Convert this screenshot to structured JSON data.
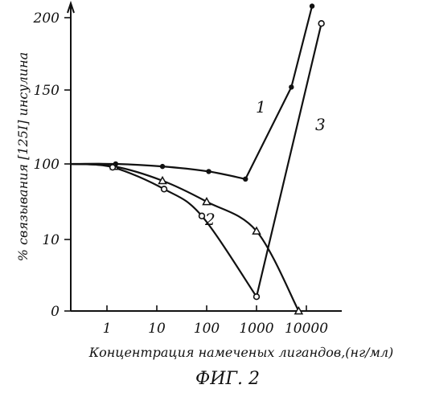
{
  "chart_data": {
    "type": "line",
    "title": "",
    "caption": "ФИГ. 2",
    "xlabel": "Концентрация намеченых лигандов,(нг/мл)",
    "ylabel": "% связывания [125I] инсулина",
    "x_scale": "log",
    "x_ticks": [
      "1",
      "10",
      "100",
      "1000",
      "10000"
    ],
    "y_ticks": [
      "0",
      "10",
      "100",
      "150",
      "200"
    ],
    "grid": false,
    "series": [
      {
        "name": "1",
        "marker": "filled-circle",
        "points": [
          {
            "x": 1.5,
            "y": 100
          },
          {
            "x": 13,
            "y": 97
          },
          {
            "x": 110,
            "y": 91
          },
          {
            "x": 600,
            "y": 82
          },
          {
            "x": 5000,
            "y": 152
          },
          {
            "x": 13000,
            "y": 208
          }
        ]
      },
      {
        "name": "2",
        "marker": "triangle",
        "points": [
          {
            "x": 1.4,
            "y": 97
          },
          {
            "x": 13,
            "y": 80
          },
          {
            "x": 100,
            "y": 55
          },
          {
            "x": 1000,
            "y": 20
          },
          {
            "x": 7000,
            "y": 0
          }
        ]
      },
      {
        "name": "3",
        "marker": "open-circle",
        "points": [
          {
            "x": 1.3,
            "y": 96
          },
          {
            "x": 14,
            "y": 70
          },
          {
            "x": 80,
            "y": 38
          },
          {
            "x": 1000,
            "y": 2
          },
          {
            "x": 20000,
            "y": 196
          }
        ]
      }
    ]
  }
}
